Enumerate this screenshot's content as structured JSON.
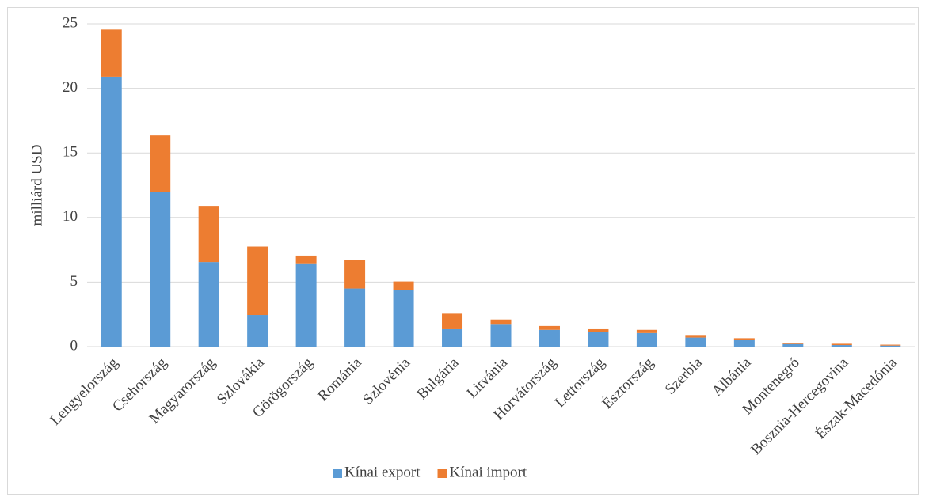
{
  "chart_data": {
    "type": "stacked_bar",
    "y_label": "milliárd USD",
    "categories": [
      "Lengyelország",
      "Csehország",
      "Magyarország",
      "Szlovákia",
      "Görögország",
      "Románia",
      "Szlovénia",
      "Bulgária",
      "Litvánia",
      "Horvátország",
      "Lettország",
      "Észtország",
      "Szerbia",
      "Albánia",
      "Montenegró",
      "Bosznia-Hercegovina",
      "Észak-Macedónia"
    ],
    "series": [
      {
        "name": "Kínai export",
        "color": "#5b9bd5",
        "values": [
          20.9,
          11.95,
          6.55,
          2.45,
          6.45,
          4.5,
          4.35,
          1.35,
          1.7,
          1.3,
          1.15,
          1.05,
          0.7,
          0.55,
          0.2,
          0.12,
          0.08
        ]
      },
      {
        "name": "Kínai import",
        "color": "#ed7d31",
        "values": [
          3.65,
          4.4,
          4.35,
          5.3,
          0.6,
          2.2,
          0.7,
          1.2,
          0.4,
          0.3,
          0.2,
          0.25,
          0.2,
          0.1,
          0.1,
          0.1,
          0.07
        ]
      }
    ],
    "ylim": [
      0,
      25
    ],
    "yticks": [
      0,
      5,
      10,
      15,
      20,
      25
    ],
    "grid": true,
    "legend": "bottom"
  }
}
